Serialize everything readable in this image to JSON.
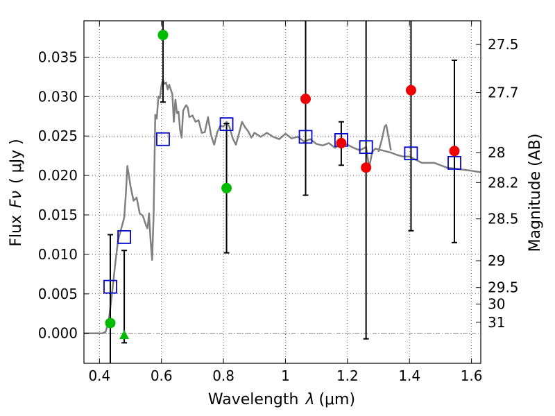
{
  "chart_data": {
    "type": "scatter",
    "xlabel_prefix": "Wavelength",
    "xlabel_symbol": "λ",
    "xlabel_unit": "(μm)",
    "ylabel_prefix": "Flux",
    "ylabel_symbol": "Fν",
    "ylabel_unit": "( μJy )",
    "y2label": "Magnitude (AB)",
    "xlim": [
      0.35,
      1.63
    ],
    "ylim": [
      -0.0038,
      0.0396
    ],
    "grid": true,
    "x_ticks": [
      {
        "value": 0.4,
        "label": "0.4"
      },
      {
        "value": 0.6,
        "label": "0.6"
      },
      {
        "value": 0.8,
        "label": "0.8"
      },
      {
        "value": 1.0,
        "label": "1"
      },
      {
        "value": 1.2,
        "label": "1.2"
      },
      {
        "value": 1.4,
        "label": "1.4"
      },
      {
        "value": 1.6,
        "label": "1.6"
      }
    ],
    "y_ticks": [
      {
        "value": 0.0,
        "label": "0.000"
      },
      {
        "value": 0.005,
        "label": "0.005"
      },
      {
        "value": 0.01,
        "label": "0.010"
      },
      {
        "value": 0.015,
        "label": "0.015"
      },
      {
        "value": 0.02,
        "label": "0.020"
      },
      {
        "value": 0.025,
        "label": "0.025"
      },
      {
        "value": 0.03,
        "label": "0.030"
      },
      {
        "value": 0.035,
        "label": "0.035"
      }
    ],
    "mag_ticks": [
      {
        "value": 0.0366,
        "label": "27.5"
      },
      {
        "value": 0.0305,
        "label": "27.7"
      },
      {
        "value": 0.0229,
        "label": "28"
      },
      {
        "value": 0.0191,
        "label": "28.2"
      },
      {
        "value": 0.0145,
        "label": "28.5"
      },
      {
        "value": 0.0092,
        "label": "29"
      },
      {
        "value": 0.0058,
        "label": "29.5"
      },
      {
        "value": 0.0037,
        "label": "30"
      },
      {
        "value": 0.0014,
        "label": "31"
      }
    ],
    "sed_model": {
      "name": "model SED",
      "color": "#808080",
      "x": [
        0.35,
        0.41,
        0.42,
        0.43,
        0.44,
        0.45,
        0.46,
        0.47,
        0.48,
        0.485,
        0.49,
        0.495,
        0.5,
        0.51,
        0.52,
        0.53,
        0.54,
        0.55,
        0.555,
        0.56,
        0.565,
        0.57,
        0.575,
        0.58,
        0.585,
        0.59,
        0.595,
        0.6,
        0.605,
        0.61,
        0.615,
        0.62,
        0.625,
        0.63,
        0.635,
        0.64,
        0.645,
        0.65,
        0.655,
        0.66,
        0.665,
        0.67,
        0.675,
        0.68,
        0.685,
        0.69,
        0.7,
        0.71,
        0.72,
        0.73,
        0.74,
        0.75,
        0.76,
        0.77,
        0.78,
        0.79,
        0.8,
        0.81,
        0.82,
        0.83,
        0.84,
        0.85,
        0.86,
        0.87,
        0.88,
        0.89,
        0.9,
        0.92,
        0.94,
        0.96,
        0.98,
        1.0,
        1.02,
        1.04,
        1.06,
        1.08,
        1.1,
        1.12,
        1.14,
        1.16,
        1.18,
        1.2,
        1.22,
        1.24,
        1.26,
        1.27,
        1.28,
        1.29,
        1.3,
        1.32,
        1.34,
        1.36,
        1.38,
        1.4,
        1.44,
        1.48,
        1.52,
        1.56,
        1.6,
        1.63
      ],
      "y": [
        0.0,
        0.0,
        0.0002,
        0.0016,
        0.0048,
        0.0085,
        0.0118,
        0.0132,
        0.0147,
        0.0175,
        0.0212,
        0.02,
        0.0187,
        0.0168,
        0.0172,
        0.0152,
        0.0149,
        0.0137,
        0.0133,
        0.0152,
        0.0117,
        0.0093,
        0.0152,
        0.0277,
        0.0272,
        0.03,
        0.0298,
        0.0314,
        0.0321,
        0.0316,
        0.0318,
        0.0309,
        0.0315,
        0.0309,
        0.0303,
        0.0268,
        0.0296,
        0.0279,
        0.0281,
        0.0258,
        0.0248,
        0.0282,
        0.0286,
        0.0289,
        0.0286,
        0.0274,
        0.0276,
        0.0268,
        0.027,
        0.0254,
        0.0255,
        0.0274,
        0.0251,
        0.0239,
        0.0255,
        0.0263,
        0.0262,
        0.0268,
        0.0261,
        0.0247,
        0.0239,
        0.0253,
        0.0268,
        0.0261,
        0.0256,
        0.0248,
        0.0254,
        0.0249,
        0.0254,
        0.0249,
        0.0246,
        0.0253,
        0.0247,
        0.0249,
        0.0243,
        0.0246,
        0.024,
        0.0238,
        0.0241,
        0.0235,
        0.0241,
        0.0239,
        0.0235,
        0.0232,
        0.0236,
        0.021,
        0.023,
        0.0234,
        0.0233,
        0.0231,
        0.0229,
        0.0226,
        0.0224,
        0.0224,
        0.0216,
        0.0216,
        0.021,
        0.0208,
        0.0206,
        0.0204
      ],
      "bump_x": [
        1.3,
        1.31,
        1.32,
        1.325,
        1.33,
        1.34
      ],
      "bump_y": [
        0.023,
        0.0244,
        0.0262,
        0.0264,
        0.0254,
        0.0232
      ]
    },
    "green_points": {
      "name": "detections (green)",
      "color": "#00bb00",
      "x": [
        0.435,
        0.605,
        0.81
      ],
      "y": [
        0.0013,
        0.0378,
        0.0184
      ]
    },
    "green_upper_limit": {
      "name": "non-detection",
      "color": "#00bb00",
      "x": [
        0.48
      ],
      "y": [
        -0.0002
      ]
    },
    "red_points": {
      "name": "detections (red)",
      "color": "#ee0000",
      "x": [
        1.065,
        1.18,
        1.26,
        1.405,
        1.545
      ],
      "y": [
        0.0297,
        0.0241,
        0.021,
        0.0308,
        0.0231
      ]
    },
    "model_photometry": {
      "name": "synthetic photometry (blue squares)",
      "color": "#0000cc",
      "x": [
        0.435,
        0.48,
        0.605,
        0.81,
        1.065,
        1.18,
        1.26,
        1.405,
        1.545
      ],
      "y": [
        0.0059,
        0.0122,
        0.0246,
        0.0265,
        0.0249,
        0.0245,
        0.0236,
        0.0228,
        0.0216
      ]
    },
    "error_bars": {
      "x": [
        0.435,
        0.48,
        0.605,
        0.81,
        1.065,
        1.18,
        1.26,
        1.405,
        1.545
      ],
      "lo": [
        -0.0038,
        -0.0012,
        0.0293,
        0.0102,
        0.0175,
        0.0213,
        -0.0007,
        0.013,
        0.0115
      ],
      "hi": [
        0.0125,
        0.0105,
        0.0396,
        0.0266,
        0.0396,
        0.0268,
        0.0396,
        0.0396,
        0.0346
      ]
    }
  }
}
